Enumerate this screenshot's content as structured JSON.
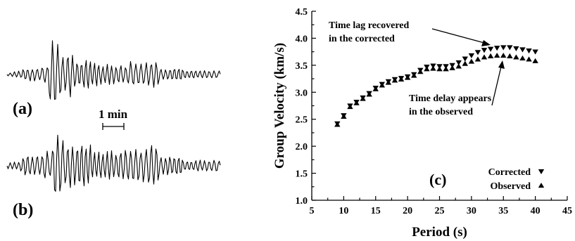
{
  "panels": {
    "a_label": "(a)",
    "b_label": "(b)",
    "c_label": "(c)",
    "scale_label": "1 min"
  },
  "annotations": {
    "lag_line1": "Time lag recovered",
    "lag_line2": "in the corrected",
    "delay_line1": "Time delay appears",
    "delay_line2": "in the observed"
  },
  "chart_data": [
    {
      "type": "line",
      "description_panel": "(a)",
      "title": "",
      "xlabel": "",
      "ylabel": "",
      "series": [
        {
          "values": []
        }
      ]
    },
    {
      "type": "line",
      "description_panel": "(b)",
      "title": "",
      "xlabel": "",
      "ylabel": "",
      "series": [
        {
          "values": []
        }
      ]
    },
    {
      "type": "scatter",
      "description_panel": "(c)",
      "title": "",
      "xlabel": "Period (s)",
      "ylabel": "Group Velocity (km/s)",
      "xlim": [
        5,
        45
      ],
      "ylim": [
        1.0,
        4.5
      ],
      "xticks": [
        "5",
        "10",
        "15",
        "20",
        "25",
        "30",
        "35",
        "40",
        "45"
      ],
      "yticks": [
        "1.0",
        "1.5",
        "2.0",
        "2.5",
        "3.0",
        "3.5",
        "4.0",
        "4.5"
      ],
      "legend_position": "bottom-right",
      "series": [
        {
          "name": "Corrected",
          "marker": "triangle-down",
          "x": [
            9,
            10,
            11,
            12,
            13,
            14,
            15,
            16,
            17,
            18,
            19,
            20,
            21,
            22,
            23,
            24,
            25,
            26,
            27,
            28,
            29,
            30,
            31,
            32,
            33,
            34,
            35,
            36,
            37,
            38,
            39,
            40
          ],
          "values": [
            2.42,
            2.57,
            2.75,
            2.82,
            2.9,
            2.98,
            3.08,
            3.15,
            3.2,
            3.24,
            3.26,
            3.29,
            3.33,
            3.41,
            3.47,
            3.49,
            3.48,
            3.48,
            3.5,
            3.55,
            3.62,
            3.68,
            3.74,
            3.78,
            3.8,
            3.82,
            3.83,
            3.83,
            3.81,
            3.79,
            3.77,
            3.75
          ]
        },
        {
          "name": "Observed",
          "marker": "triangle-up",
          "x": [
            9,
            10,
            11,
            12,
            13,
            14,
            15,
            16,
            17,
            18,
            19,
            20,
            21,
            22,
            23,
            24,
            25,
            26,
            27,
            28,
            29,
            30,
            31,
            32,
            33,
            34,
            35,
            36,
            37,
            38,
            39,
            40
          ],
          "values": [
            2.4,
            2.55,
            2.73,
            2.8,
            2.88,
            2.96,
            3.06,
            3.13,
            3.18,
            3.22,
            3.24,
            3.27,
            3.31,
            3.38,
            3.43,
            3.44,
            3.43,
            3.43,
            3.45,
            3.48,
            3.53,
            3.57,
            3.61,
            3.65,
            3.67,
            3.68,
            3.68,
            3.67,
            3.65,
            3.63,
            3.61,
            3.58
          ]
        }
      ]
    }
  ]
}
